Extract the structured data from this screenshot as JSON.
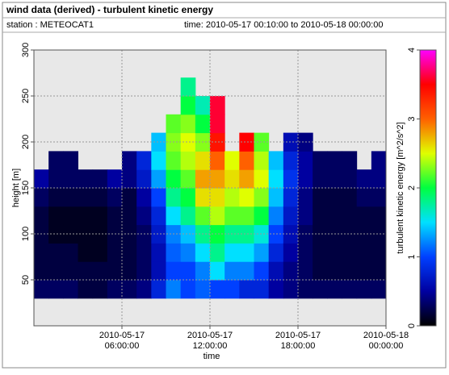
{
  "chart_data": {
    "type": "heatmap",
    "title": "wind data (derived) - turbulent kinetic energy",
    "station": "station : METEOCAT1",
    "time_range": "time: 2010-05-17 00:10:00 to 2010-05-18 00:00:00",
    "xlabel": "time",
    "ylabel": "height [m]",
    "colorbar_label": "turbulent kinetic energy [m^2/s^2]",
    "x": [
      "2010-05-17 00:30:00",
      "2010-05-17 01:30:00",
      "2010-05-17 02:30:00",
      "2010-05-17 03:30:00",
      "2010-05-17 04:30:00",
      "2010-05-17 05:30:00",
      "2010-05-17 06:30:00",
      "2010-05-17 07:30:00",
      "2010-05-17 08:30:00",
      "2010-05-17 09:30:00",
      "2010-05-17 10:30:00",
      "2010-05-17 11:30:00",
      "2010-05-17 12:30:00",
      "2010-05-17 13:30:00",
      "2010-05-17 14:30:00",
      "2010-05-17 15:30:00",
      "2010-05-17 16:30:00",
      "2010-05-17 17:30:00",
      "2010-05-17 18:30:00",
      "2010-05-17 19:30:00",
      "2010-05-17 20:30:00",
      "2010-05-17 21:30:00",
      "2010-05-17 22:30:00",
      "2010-05-17 23:30:00"
    ],
    "y": [
      40,
      60,
      80,
      100,
      120,
      140,
      160,
      180,
      200,
      220,
      240,
      260
    ],
    "z": [
      [
        0.3,
        0.2,
        0.2,
        0.2,
        0.2,
        0.3,
        0.5,
        null,
        null,
        null,
        null,
        null
      ],
      [
        0.3,
        0.2,
        0.2,
        0.1,
        0.1,
        0.2,
        0.3,
        0.3,
        null,
        null,
        null,
        null
      ],
      [
        0.3,
        0.2,
        0.2,
        0.1,
        0.1,
        0.2,
        0.3,
        0.3,
        null,
        null,
        null,
        null
      ],
      [
        0.2,
        0.2,
        0.1,
        0.1,
        0.1,
        0.2,
        0.3,
        null,
        null,
        null,
        null,
        null
      ],
      [
        0.2,
        0.2,
        0.1,
        0.1,
        0.1,
        0.2,
        0.3,
        null,
        null,
        null,
        null,
        null
      ],
      [
        0.3,
        0.2,
        0.2,
        0.2,
        0.2,
        0.3,
        0.5,
        null,
        null,
        null,
        null,
        null
      ],
      [
        0.3,
        0.2,
        0.2,
        0.2,
        0.2,
        0.2,
        0.4,
        0.4,
        null,
        null,
        null,
        null
      ],
      [
        0.4,
        0.3,
        0.3,
        0.3,
        0.4,
        0.5,
        0.7,
        0.8,
        null,
        null,
        null,
        null
      ],
      [
        0.8,
        0.6,
        0.6,
        0.7,
        0.8,
        1.0,
        1.3,
        1.5,
        1.4,
        null,
        null,
        null
      ],
      [
        1.2,
        1.0,
        1.1,
        1.2,
        1.5,
        1.8,
        2.0,
        2.2,
        2.3,
        2.2,
        null,
        null
      ],
      [
        1.0,
        1.0,
        1.2,
        1.4,
        1.8,
        2.0,
        2.2,
        2.4,
        2.5,
        2.3,
        2.0,
        1.8
      ],
      [
        1.1,
        1.2,
        1.5,
        1.8,
        2.2,
        2.6,
        2.8,
        2.6,
        2.3,
        2.0,
        1.7,
        null
      ],
      [
        1.0,
        1.5,
        1.8,
        2.0,
        2.4,
        2.6,
        2.8,
        3.0,
        3.4,
        3.6,
        3.6,
        null
      ],
      [
        1.0,
        1.2,
        1.5,
        1.8,
        2.2,
        2.4,
        2.6,
        2.5,
        null,
        null,
        null,
        null
      ],
      [
        0.8,
        1.2,
        1.5,
        1.8,
        2.2,
        2.5,
        2.8,
        3.0,
        3.5,
        null,
        null,
        null
      ],
      [
        0.8,
        1.0,
        1.3,
        1.6,
        2.0,
        2.3,
        2.5,
        2.4,
        2.2,
        null,
        null,
        null
      ],
      [
        0.5,
        0.6,
        0.8,
        1.0,
        1.2,
        1.4,
        1.5,
        1.4,
        null,
        null,
        null,
        null
      ],
      [
        0.4,
        0.4,
        0.5,
        0.6,
        0.7,
        0.8,
        0.9,
        0.8,
        0.6,
        null,
        null,
        null
      ],
      [
        0.3,
        0.3,
        0.3,
        0.3,
        0.4,
        0.4,
        0.5,
        0.5,
        0.4,
        null,
        null,
        null
      ],
      [
        0.3,
        0.2,
        0.2,
        0.2,
        0.2,
        0.2,
        0.3,
        0.3,
        null,
        null,
        null,
        null
      ],
      [
        0.3,
        0.2,
        0.2,
        0.2,
        0.2,
        0.2,
        0.3,
        0.3,
        null,
        null,
        null,
        null
      ],
      [
        0.3,
        0.2,
        0.2,
        0.2,
        0.2,
        0.2,
        0.3,
        0.3,
        null,
        null,
        null,
        null
      ],
      [
        0.3,
        0.2,
        0.2,
        0.2,
        0.2,
        0.3,
        0.4,
        null,
        null,
        null,
        null,
        null
      ],
      [
        0.3,
        0.2,
        0.2,
        0.2,
        0.2,
        0.3,
        0.4,
        0.4,
        null,
        null,
        null,
        null
      ]
    ],
    "xlim": [
      "2010-05-17 00:00:00",
      "2010-05-18 00:00:00"
    ],
    "xticks": [
      {
        "value": "2010-05-17 06:00:00",
        "label": [
          "2010-05-17",
          "06:00:00"
        ]
      },
      {
        "value": "2010-05-17 12:00:00",
        "label": [
          "2010-05-17",
          "12:00:00"
        ]
      },
      {
        "value": "2010-05-17 18:00:00",
        "label": [
          "2010-05-17",
          "18:00:00"
        ]
      },
      {
        "value": "2010-05-18 00:00:00",
        "label": [
          "2010-05-18",
          "00:00:00"
        ]
      }
    ],
    "ylim": [
      0,
      300
    ],
    "yticks": [
      50,
      100,
      150,
      200,
      250,
      300
    ],
    "zlim": [
      0,
      4
    ],
    "zticks": [
      0,
      1,
      2,
      3,
      4
    ],
    "colorscale": [
      [
        0,
        "#000000"
      ],
      [
        0.5,
        "#0000a0"
      ],
      [
        1,
        "#0040ff"
      ],
      [
        1.5,
        "#00e0ff"
      ],
      [
        2,
        "#00ff40"
      ],
      [
        2.5,
        "#e0ff00"
      ],
      [
        3,
        "#ff6000"
      ],
      [
        3.5,
        "#ff0000"
      ],
      [
        4,
        "#ff00ff"
      ]
    ],
    "grid": true
  }
}
